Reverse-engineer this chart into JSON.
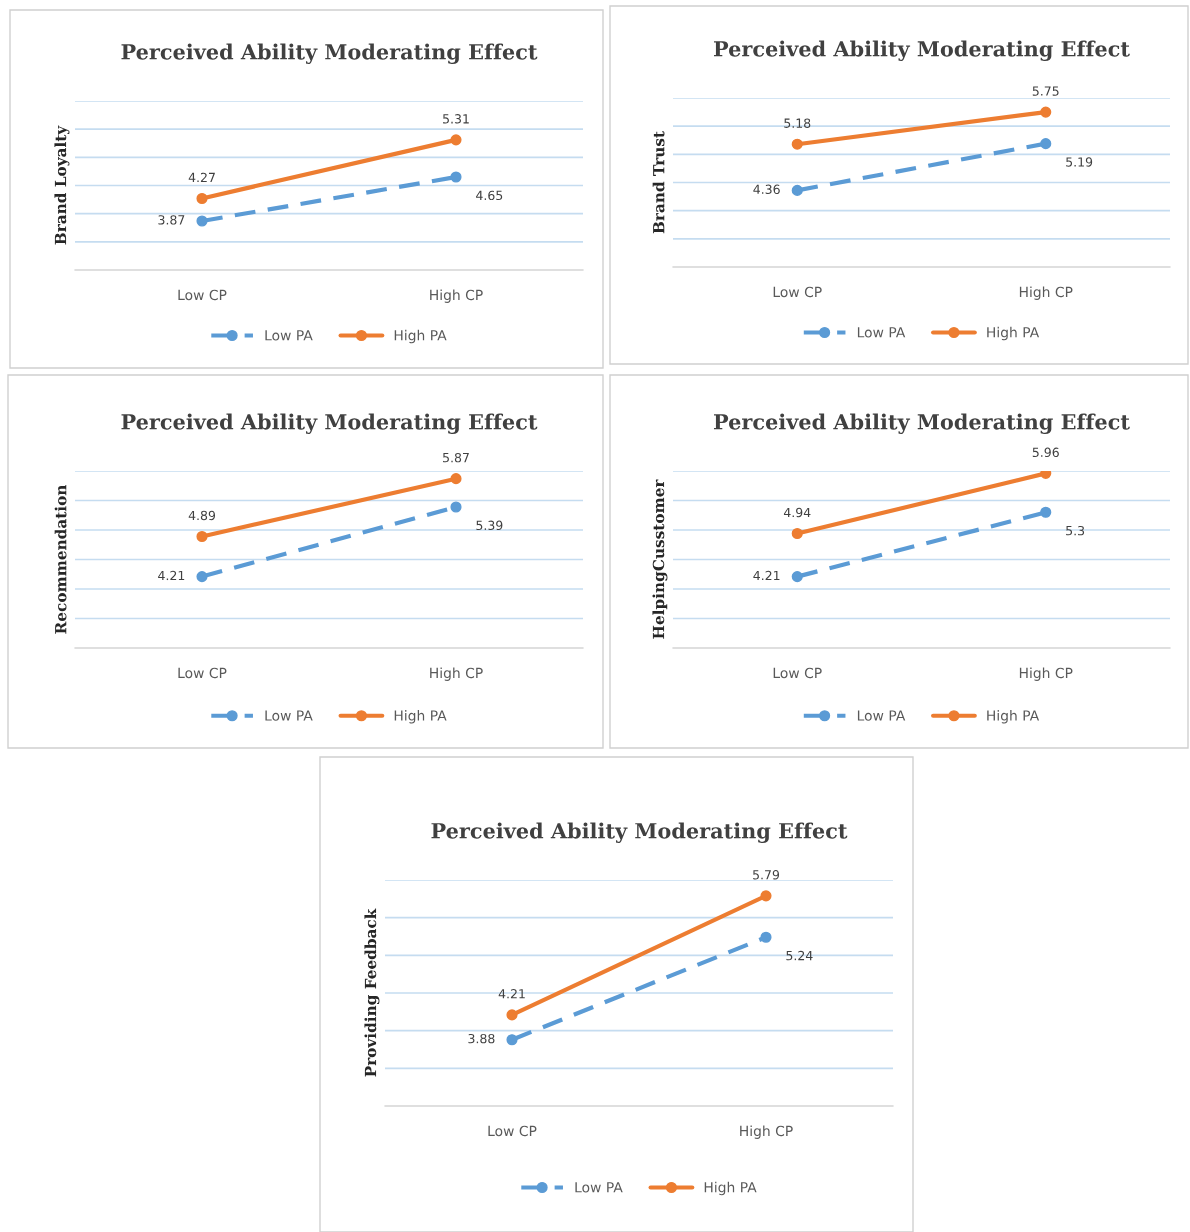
{
  "chart_data": [
    {
      "type": "line",
      "title": "Perceived Ability Moderating Effect",
      "ylabel": "Brand Loyalty",
      "categories": [
        "Low CP",
        "High CP"
      ],
      "series": [
        {
          "name": "Low PA",
          "color": "#5b9bd5",
          "line_style": "dashed",
          "values": [
            3.87,
            4.65
          ]
        },
        {
          "name": "High PA",
          "color": "#ed7d31",
          "line_style": "solid",
          "values": [
            4.27,
            5.31
          ]
        }
      ],
      "marker": "circle",
      "ylim": [
        3,
        6
      ],
      "yticks": [
        {
          "value": 3.5,
          "label": null
        },
        {
          "value": 4,
          "label": null
        },
        {
          "value": 4.5,
          "label": null
        },
        {
          "value": 5,
          "label": null
        },
        {
          "value": 5.5,
          "label": null
        },
        {
          "value": 6,
          "label": null
        }
      ],
      "tick_labels": "x",
      "grid": "y",
      "legend": "bottom",
      "data_labels": true
    },
    {
      "type": "line",
      "title": "Perceived Ability Moderating Effect",
      "ylabel": "Brand Trust",
      "categories": [
        "Low CP",
        "High CP"
      ],
      "series": [
        {
          "name": "Low PA",
          "color": "#5b9bd5",
          "line_style": "dashed",
          "values": [
            4.36,
            5.19
          ]
        },
        {
          "name": "High PA",
          "color": "#ed7d31",
          "line_style": "solid",
          "values": [
            5.18,
            5.75
          ]
        }
      ],
      "marker": "circle",
      "ylim": [
        3,
        6
      ],
      "yticks": [
        {
          "value": 3.5,
          "label": null
        },
        {
          "value": 4,
          "label": null
        },
        {
          "value": 4.5,
          "label": null
        },
        {
          "value": 5,
          "label": null
        },
        {
          "value": 5.5,
          "label": null
        },
        {
          "value": 6,
          "label": null
        }
      ],
      "tick_labels": "x",
      "grid": "y",
      "legend": "bottom",
      "data_labels": true
    },
    {
      "type": "line",
      "title": "Perceived Ability Moderating Effect",
      "ylabel": "Recommendation",
      "categories": [
        "Low CP",
        "High CP"
      ],
      "series": [
        {
          "name": "Low PA",
          "color": "#5b9bd5",
          "line_style": "dashed",
          "values": [
            4.21,
            5.39
          ]
        },
        {
          "name": "High PA",
          "color": "#ed7d31",
          "line_style": "solid",
          "values": [
            4.89,
            5.87
          ]
        }
      ],
      "marker": "circle",
      "ylim": [
        3,
        6
      ],
      "yticks": [
        {
          "value": 3.5,
          "label": null
        },
        {
          "value": 4,
          "label": null
        },
        {
          "value": 4.5,
          "label": null
        },
        {
          "value": 5,
          "label": null
        },
        {
          "value": 5.5,
          "label": null
        },
        {
          "value": 6,
          "label": null
        }
      ],
      "tick_labels": "x",
      "grid": "y",
      "legend": "bottom",
      "data_labels": true
    },
    {
      "type": "line",
      "title": "Perceived Ability Moderating Effect",
      "ylabel": "HelpingCusstomer",
      "categories": [
        "Low CP",
        "High CP"
      ],
      "series": [
        {
          "name": "Low PA",
          "color": "#5b9bd5",
          "line_style": "dashed",
          "values": [
            4.21,
            5.3
          ]
        },
        {
          "name": "High PA",
          "color": "#ed7d31",
          "line_style": "solid",
          "values": [
            4.94,
            5.96
          ]
        }
      ],
      "marker": "circle",
      "ylim": [
        3,
        6
      ],
      "yticks": [
        {
          "value": 3.5,
          "label": null
        },
        {
          "value": 4,
          "label": null
        },
        {
          "value": 4.5,
          "label": null
        },
        {
          "value": 5,
          "label": null
        },
        {
          "value": 5.5,
          "label": null
        },
        {
          "value": 6,
          "label": null
        }
      ],
      "tick_labels": "x",
      "grid": "y",
      "legend": "bottom",
      "data_labels": true
    },
    {
      "type": "line",
      "title": "Perceived Ability Moderating Effect",
      "ylabel": "Providing Feedback",
      "categories": [
        "Low CP",
        "High CP"
      ],
      "series": [
        {
          "name": "Low PA",
          "color": "#5b9bd5",
          "line_style": "dashed",
          "values": [
            3.88,
            5.24
          ]
        },
        {
          "name": "High PA",
          "color": "#ed7d31",
          "line_style": "solid",
          "values": [
            4.21,
            5.79
          ]
        }
      ],
      "marker": "circle",
      "ylim": [
        3,
        6
      ],
      "yticks": [
        {
          "value": 3.5,
          "label": null
        },
        {
          "value": 4,
          "label": null
        },
        {
          "value": 4.5,
          "label": null
        },
        {
          "value": 5,
          "label": null
        },
        {
          "value": 5.5,
          "label": null
        },
        {
          "value": 6,
          "label": null
        }
      ],
      "tick_labels": "x",
      "grid": "y",
      "legend": "bottom",
      "data_labels": true
    }
  ]
}
